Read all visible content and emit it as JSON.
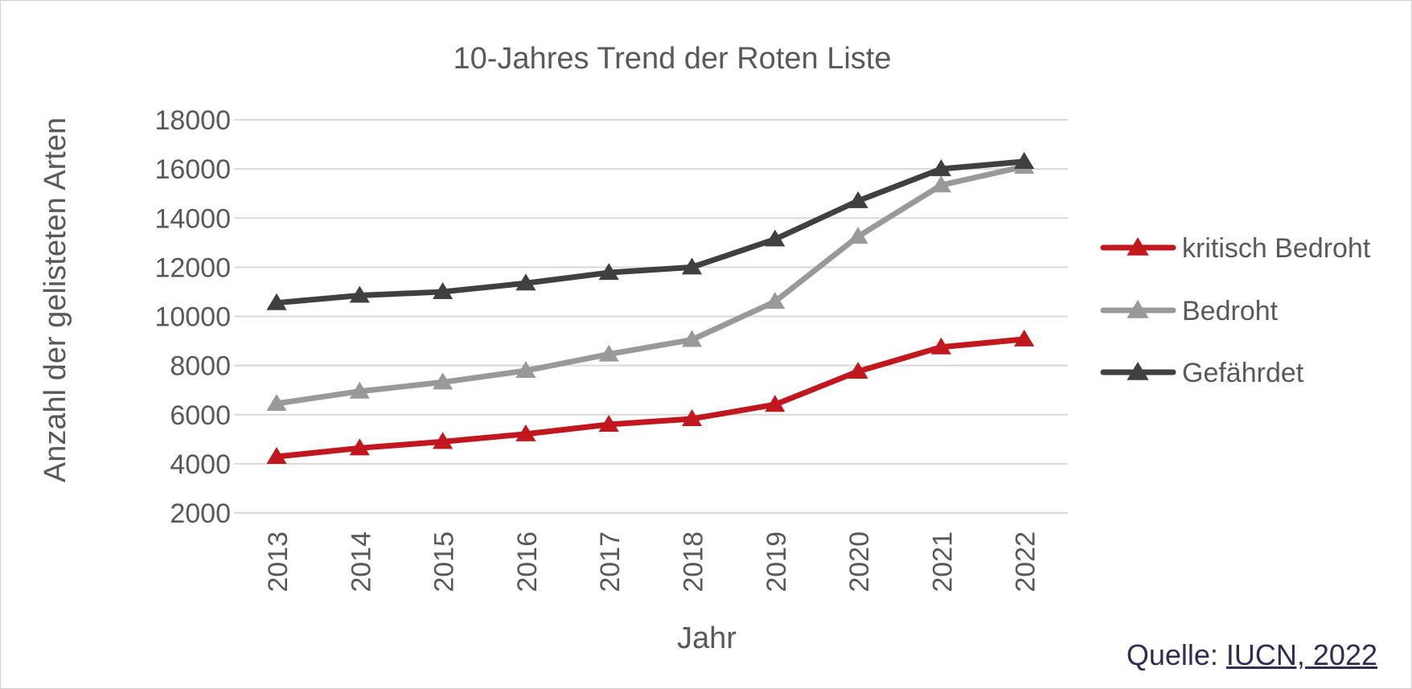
{
  "chart_data": {
    "type": "line",
    "title": "10-Jahres Trend der Roten Liste",
    "xlabel": "Jahr",
    "ylabel": "Anzahl der gelisteten Arten",
    "categories": [
      "2013",
      "2014",
      "2015",
      "2016",
      "2017",
      "2018",
      "2019",
      "2020",
      "2021",
      "2022"
    ],
    "ylim": [
      2000,
      18000
    ],
    "yticks": [
      "2000",
      "4000",
      "6000",
      "8000",
      "10000",
      "12000",
      "14000",
      "16000",
      "18000"
    ],
    "grid": true,
    "legend_position": "right",
    "marker": "triangle",
    "series": [
      {
        "name": "kritisch Bedroht",
        "color": "#c0181e",
        "values": [
          4290,
          4640,
          4900,
          5210,
          5600,
          5830,
          6410,
          7760,
          8750,
          9070
        ]
      },
      {
        "name": "Bedroht",
        "color": "#999999",
        "values": [
          6450,
          6950,
          7320,
          7790,
          8460,
          9050,
          10600,
          13250,
          15340,
          16100
        ]
      },
      {
        "name": "Gefährdet",
        "color": "#404040",
        "values": [
          10550,
          10850,
          11000,
          11350,
          11780,
          12000,
          13140,
          14700,
          16000,
          16300
        ]
      }
    ]
  },
  "source": {
    "label": "Quelle:",
    "link_text": "IUCN, 2022"
  }
}
